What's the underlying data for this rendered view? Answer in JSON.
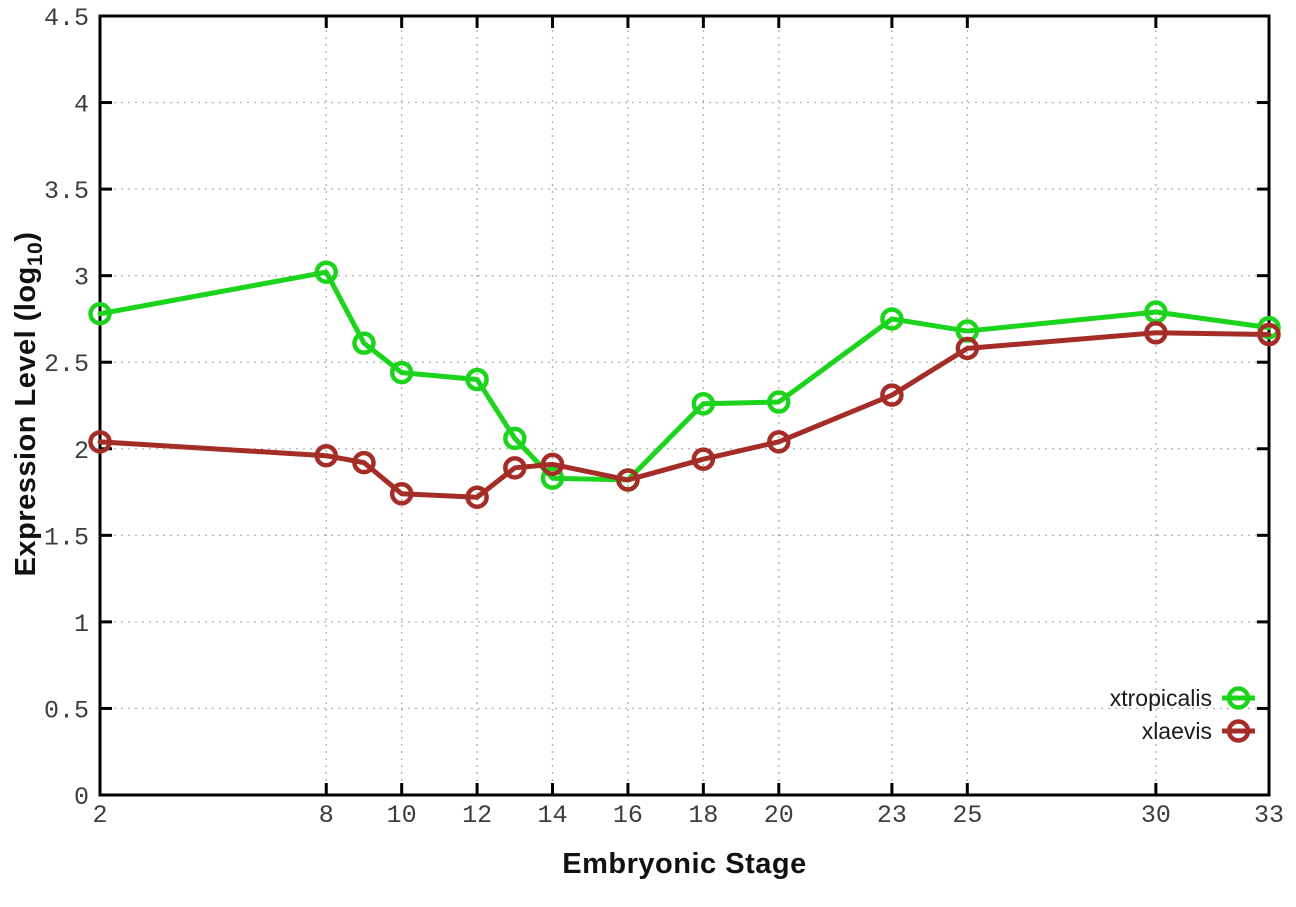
{
  "figure": {
    "background": "#ffffff"
  },
  "chart_data": {
    "type": "line",
    "title": "",
    "xlabel": "Embryonic Stage",
    "ylabel": {
      "pre": "Expression Level (log",
      "sub": "10",
      "post": ")"
    },
    "x_values": [
      2,
      8,
      9,
      10,
      12,
      13,
      14,
      16,
      18,
      20,
      23,
      25,
      30,
      33
    ],
    "xticks": [
      2,
      8,
      10,
      12,
      14,
      16,
      18,
      20,
      23,
      25,
      30,
      33
    ],
    "yticks": [
      0,
      0.5,
      1,
      1.5,
      2,
      2.5,
      3,
      3.5,
      4,
      4.5
    ],
    "xlim": [
      2,
      33
    ],
    "ylim": [
      0,
      4.5
    ],
    "grid": true,
    "legend_position": "bottom-right",
    "series": [
      {
        "name": "xtropicalis",
        "color": "#1cd41c",
        "marker": "open-circle",
        "values": [
          2.78,
          3.02,
          2.61,
          2.44,
          2.4,
          2.06,
          1.83,
          1.82,
          2.26,
          2.27,
          2.75,
          2.68,
          2.79,
          2.7
        ]
      },
      {
        "name": "xlaevis",
        "color": "#a42d28",
        "marker": "open-circle",
        "values": [
          2.04,
          1.96,
          1.92,
          1.74,
          1.72,
          1.89,
          1.91,
          1.82,
          1.94,
          2.04,
          2.31,
          2.58,
          2.67,
          2.66
        ]
      }
    ],
    "colors": {
      "grid": "#b5b5b5",
      "axis": "#000000",
      "tick_label": "#3d3d3d",
      "legend_text": "#1a1a1a"
    }
  }
}
